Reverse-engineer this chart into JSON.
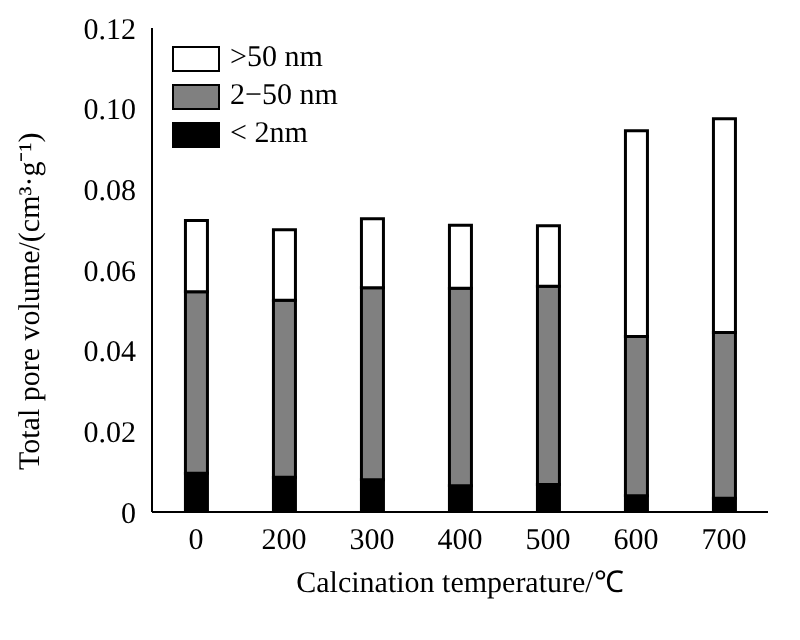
{
  "chart_data": {
    "type": "bar",
    "stacked": true,
    "xlabel": "Calcination temperature/℃",
    "ylabel": "Total pore volume/(cm³·g⁻¹)",
    "categories": [
      "0",
      "200",
      "300",
      "400",
      "500",
      "600",
      "700"
    ],
    "series": [
      {
        "name": "< 2nm",
        "color": "#000000",
        "values": [
          0.0096,
          0.0086,
          0.008,
          0.0065,
          0.0068,
          0.004,
          0.0034
        ]
      },
      {
        "name": "2−50 nm",
        "color": "#808080",
        "values": [
          0.045,
          0.0439,
          0.0476,
          0.049,
          0.0492,
          0.0395,
          0.0411
        ]
      },
      {
        "name": ">50 nm",
        "color": "#ffffff",
        "values": [
          0.0177,
          0.0175,
          0.0171,
          0.0156,
          0.015,
          0.051,
          0.053
        ]
      }
    ],
    "ylim": [
      0,
      0.12
    ],
    "yticks": [
      {
        "value": 0,
        "label": "0"
      },
      0.02,
      0.04,
      0.06,
      0.08,
      {
        "value": 0.1,
        "label": "0.10"
      },
      0.12
    ],
    "grid": false,
    "legend": "top left"
  }
}
